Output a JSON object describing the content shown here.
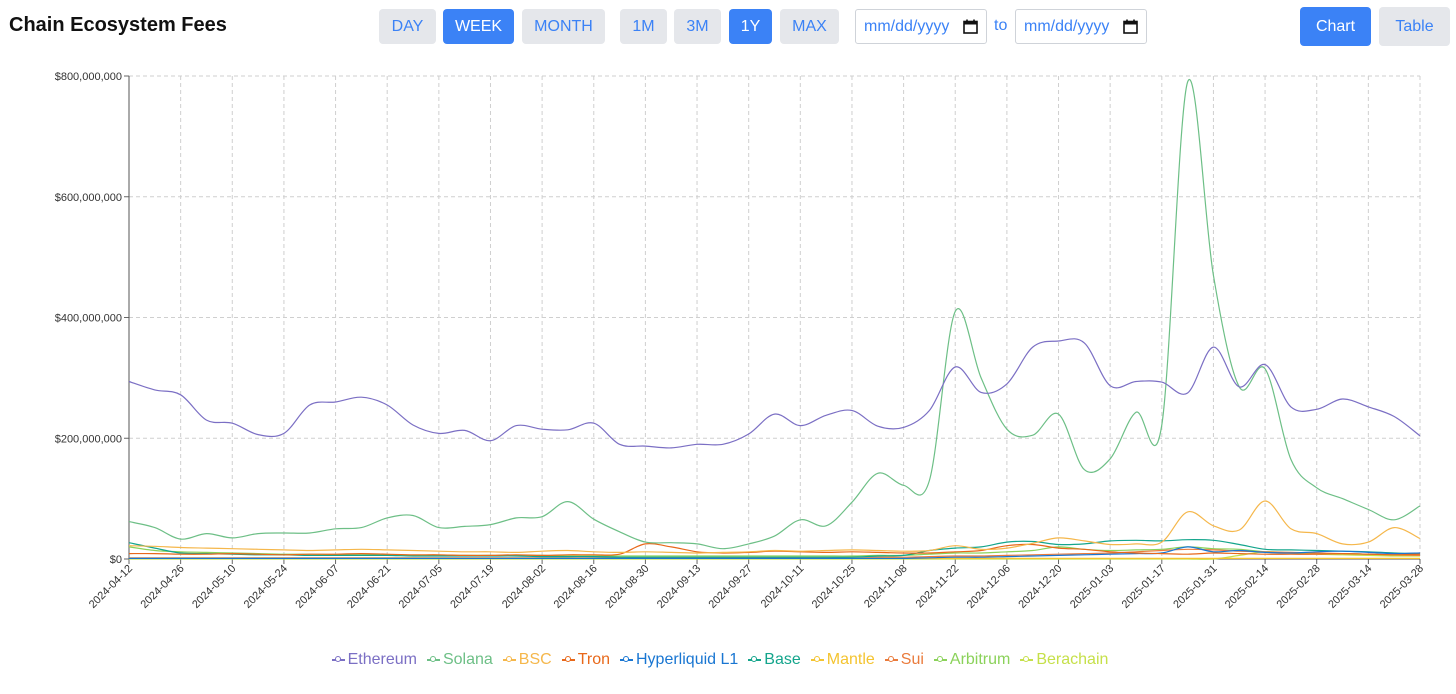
{
  "header": {
    "title": "Chain Ecosystem Fees",
    "interval_buttons": [
      {
        "label": "DAY",
        "active": false
      },
      {
        "label": "WEEK",
        "active": true
      },
      {
        "label": "MONTH",
        "active": false
      }
    ],
    "range_buttons": [
      {
        "label": "1M",
        "active": false
      },
      {
        "label": "3M",
        "active": false
      },
      {
        "label": "1Y",
        "active": true
      },
      {
        "label": "MAX",
        "active": false
      }
    ],
    "date_from_placeholder": "mm/dd/yyyy",
    "date_to_placeholder": "mm/dd/yyyy",
    "to_label": "to",
    "view_buttons": [
      {
        "label": "Chart",
        "active": true
      },
      {
        "label": "Table",
        "active": false
      }
    ]
  },
  "chart_data": {
    "type": "line",
    "title": "",
    "xlabel": "",
    "ylabel": "",
    "ylim": [
      0,
      800000000
    ],
    "y_ticks": [
      "$0",
      "$200,000,000",
      "$400,000,000",
      "$600,000,000",
      "$800,000,000"
    ],
    "grid": true,
    "legend_position": "bottom",
    "x": [
      "2024-04-12",
      "2024-04-19",
      "2024-04-26",
      "2024-05-03",
      "2024-05-10",
      "2024-05-17",
      "2024-05-24",
      "2024-05-31",
      "2024-06-07",
      "2024-06-14",
      "2024-06-21",
      "2024-06-28",
      "2024-07-05",
      "2024-07-12",
      "2024-07-19",
      "2024-07-26",
      "2024-08-02",
      "2024-08-09",
      "2024-08-16",
      "2024-08-23",
      "2024-08-30",
      "2024-09-06",
      "2024-09-13",
      "2024-09-20",
      "2024-09-27",
      "2024-10-04",
      "2024-10-11",
      "2024-10-18",
      "2024-10-25",
      "2024-11-01",
      "2024-11-08",
      "2024-11-15",
      "2024-11-22",
      "2024-11-29",
      "2024-12-06",
      "2024-12-13",
      "2024-12-20",
      "2024-12-27",
      "2025-01-03",
      "2025-01-10",
      "2025-01-17",
      "2025-01-24",
      "2025-01-31",
      "2025-02-07",
      "2025-02-14",
      "2025-02-21",
      "2025-02-28",
      "2025-03-07",
      "2025-03-14",
      "2025-03-21",
      "2025-03-28"
    ],
    "x_tick_labels": [
      "2024-04-12",
      "2024-04-26",
      "2024-05-10",
      "2024-05-24",
      "2024-06-07",
      "2024-06-21",
      "2024-07-05",
      "2024-07-19",
      "2024-08-02",
      "2024-08-16",
      "2024-08-30",
      "2024-09-13",
      "2024-09-27",
      "2024-10-11",
      "2024-10-25",
      "2024-11-08",
      "2024-11-22",
      "2024-12-06",
      "2024-12-20",
      "2025-01-03",
      "2025-01-17",
      "2025-01-31",
      "2025-02-14",
      "2025-02-28",
      "2025-03-14",
      "2025-03-28"
    ],
    "series": [
      {
        "name": "Ethereum",
        "color": "#7b6fc4",
        "values": [
          294000000,
          280000000,
          272000000,
          230000000,
          225000000,
          206000000,
          208000000,
          255000000,
          260000000,
          268000000,
          255000000,
          222000000,
          208000000,
          213000000,
          196000000,
          221000000,
          215000000,
          214000000,
          225000000,
          190000000,
          187000000,
          184000000,
          190000000,
          190000000,
          207000000,
          240000000,
          221000000,
          238000000,
          246000000,
          220000000,
          218000000,
          246000000,
          318000000,
          276000000,
          290000000,
          351000000,
          361000000,
          358000000,
          287000000,
          294000000,
          293000000,
          275000000,
          351000000,
          285000000,
          322000000,
          252000000,
          248000000,
          265000000,
          252000000,
          236000000,
          204000000
        ]
      },
      {
        "name": "Solana",
        "color": "#6dbf86",
        "values": [
          62000000,
          52000000,
          33000000,
          42000000,
          35000000,
          42000000,
          43000000,
          43000000,
          50000000,
          52000000,
          68000000,
          72000000,
          52000000,
          54000000,
          57000000,
          68000000,
          70000000,
          95000000,
          66000000,
          45000000,
          28000000,
          27000000,
          25000000,
          17000000,
          25000000,
          38000000,
          65000000,
          55000000,
          94000000,
          142000000,
          122000000,
          130000000,
          410000000,
          300000000,
          215000000,
          205000000,
          240000000,
          148000000,
          166000000,
          243000000,
          222000000,
          790000000,
          470000000,
          285000000,
          315000000,
          165000000,
          118000000,
          100000000,
          82000000,
          65000000,
          88000000
        ]
      },
      {
        "name": "BSC",
        "color": "#f5b74b",
        "values": [
          22000000,
          21000000,
          19000000,
          18000000,
          17000000,
          16000000,
          15000000,
          14000000,
          15000000,
          16000000,
          15000000,
          14000000,
          13000000,
          12000000,
          12000000,
          11000000,
          13000000,
          14000000,
          12000000,
          11000000,
          12000000,
          11000000,
          10000000,
          11000000,
          12000000,
          14000000,
          13000000,
          14000000,
          15000000,
          14000000,
          13000000,
          14000000,
          22000000,
          16000000,
          18000000,
          26000000,
          35000000,
          30000000,
          24000000,
          25000000,
          28000000,
          78000000,
          55000000,
          48000000,
          96000000,
          50000000,
          42000000,
          25000000,
          28000000,
          52000000,
          34000000
        ]
      },
      {
        "name": "Tron",
        "color": "#e8681a",
        "values": [
          9000000,
          9000000,
          8000000,
          8000000,
          9000000,
          8000000,
          7000000,
          8000000,
          8000000,
          9000000,
          8000000,
          7000000,
          7000000,
          6000000,
          6000000,
          7000000,
          6000000,
          7000000,
          7000000,
          8000000,
          25000000,
          20000000,
          12000000,
          10000000,
          11000000,
          13000000,
          12000000,
          11000000,
          12000000,
          11000000,
          10000000,
          10000000,
          12000000,
          14000000,
          22000000,
          24000000,
          18000000,
          16000000,
          12000000,
          10000000,
          9000000,
          8000000,
          10000000,
          9000000,
          8000000,
          8000000,
          8000000,
          9000000,
          8000000,
          7000000,
          8000000
        ]
      },
      {
        "name": "Hyperliquid L1",
        "color": "#1976d2",
        "values": [
          1000000,
          1000000,
          1000000,
          1000000,
          1000000,
          1000000,
          1000000,
          1000000,
          1000000,
          1000000,
          1000000,
          1000000,
          1000000,
          1000000,
          1000000,
          1000000,
          1000000,
          1000000,
          1000000,
          1000000,
          1000000,
          1000000,
          1000000,
          1000000,
          1000000,
          1000000,
          1000000,
          1000000,
          1000000,
          1000000,
          1000000,
          2000000,
          3000000,
          3000000,
          4000000,
          5000000,
          6000000,
          7000000,
          8000000,
          9000000,
          10000000,
          20000000,
          12000000,
          14000000,
          11000000,
          10000000,
          12000000,
          13000000,
          11000000,
          9000000,
          10000000
        ]
      },
      {
        "name": "Base",
        "color": "#14a58c",
        "values": [
          27000000,
          18000000,
          10000000,
          9000000,
          8000000,
          7000000,
          7000000,
          6000000,
          6000000,
          6000000,
          6000000,
          5000000,
          5000000,
          5000000,
          5000000,
          5000000,
          4000000,
          4000000,
          4000000,
          3000000,
          3000000,
          3000000,
          3000000,
          3000000,
          3000000,
          3000000,
          3000000,
          3000000,
          3000000,
          5000000,
          6000000,
          14000000,
          18000000,
          20000000,
          28000000,
          29000000,
          24000000,
          25000000,
          30000000,
          31000000,
          30000000,
          32000000,
          31000000,
          24000000,
          16000000,
          15000000,
          14000000,
          13000000,
          12000000,
          10000000,
          9000000
        ]
      },
      {
        "name": "Mantle",
        "color": "#f4c430",
        "values": [
          1000000,
          1000000,
          1000000,
          1000000,
          1000000,
          1000000,
          1000000,
          1000000,
          1000000,
          1000000,
          1000000,
          1000000,
          1000000,
          1000000,
          1000000,
          1000000,
          1000000,
          1000000,
          1000000,
          1000000,
          1000000,
          1000000,
          1000000,
          1000000,
          1000000,
          1000000,
          1000000,
          1000000,
          1000000,
          1000000,
          1000000,
          1000000,
          1000000,
          1000000,
          1000000,
          1000000,
          1000000,
          1000000,
          1000000,
          1000000,
          1000000,
          1000000,
          1000000,
          1000000,
          1000000,
          1000000,
          1000000,
          1000000,
          1000000,
          1000000,
          1000000
        ]
      },
      {
        "name": "Sui",
        "color": "#ea7b3c",
        "values": [
          2000000,
          2000000,
          2000000,
          2000000,
          2000000,
          2000000,
          2000000,
          2000000,
          2000000,
          2000000,
          2000000,
          2000000,
          2000000,
          2000000,
          2000000,
          2000000,
          2000000,
          2000000,
          2000000,
          2000000,
          2000000,
          2000000,
          2000000,
          2000000,
          2000000,
          2000000,
          2000000,
          2000000,
          3000000,
          3000000,
          3000000,
          4000000,
          5000000,
          5000000,
          6000000,
          7000000,
          8000000,
          9000000,
          10000000,
          12000000,
          14000000,
          16000000,
          15000000,
          13000000,
          12000000,
          11000000,
          10000000,
          9000000,
          8000000,
          7000000,
          6000000
        ]
      },
      {
        "name": "Arbitrum",
        "color": "#8bd25a",
        "values": [
          20000000,
          14000000,
          12000000,
          11000000,
          10000000,
          9000000,
          8000000,
          8000000,
          7000000,
          7000000,
          7000000,
          6000000,
          6000000,
          6000000,
          6000000,
          6000000,
          6000000,
          5000000,
          5000000,
          5000000,
          5000000,
          5000000,
          5000000,
          5000000,
          5000000,
          5000000,
          5000000,
          5000000,
          5000000,
          6000000,
          6000000,
          8000000,
          10000000,
          10000000,
          12000000,
          14000000,
          20000000,
          16000000,
          14000000,
          15000000,
          16000000,
          20000000,
          17000000,
          16000000,
          12000000,
          10000000,
          9000000,
          9000000,
          8000000,
          7000000,
          7000000
        ]
      },
      {
        "name": "Berachain",
        "color": "#c6e04a",
        "values": [
          0,
          0,
          0,
          0,
          0,
          0,
          0,
          0,
          0,
          0,
          0,
          0,
          0,
          0,
          0,
          0,
          0,
          0,
          0,
          0,
          0,
          0,
          0,
          0,
          0,
          0,
          0,
          0,
          0,
          0,
          0,
          0,
          0,
          0,
          0,
          0,
          0,
          0,
          0,
          0,
          0,
          0,
          0,
          6000000,
          12000000,
          10000000,
          8000000,
          7000000,
          6000000,
          5000000,
          5000000
        ]
      }
    ]
  }
}
